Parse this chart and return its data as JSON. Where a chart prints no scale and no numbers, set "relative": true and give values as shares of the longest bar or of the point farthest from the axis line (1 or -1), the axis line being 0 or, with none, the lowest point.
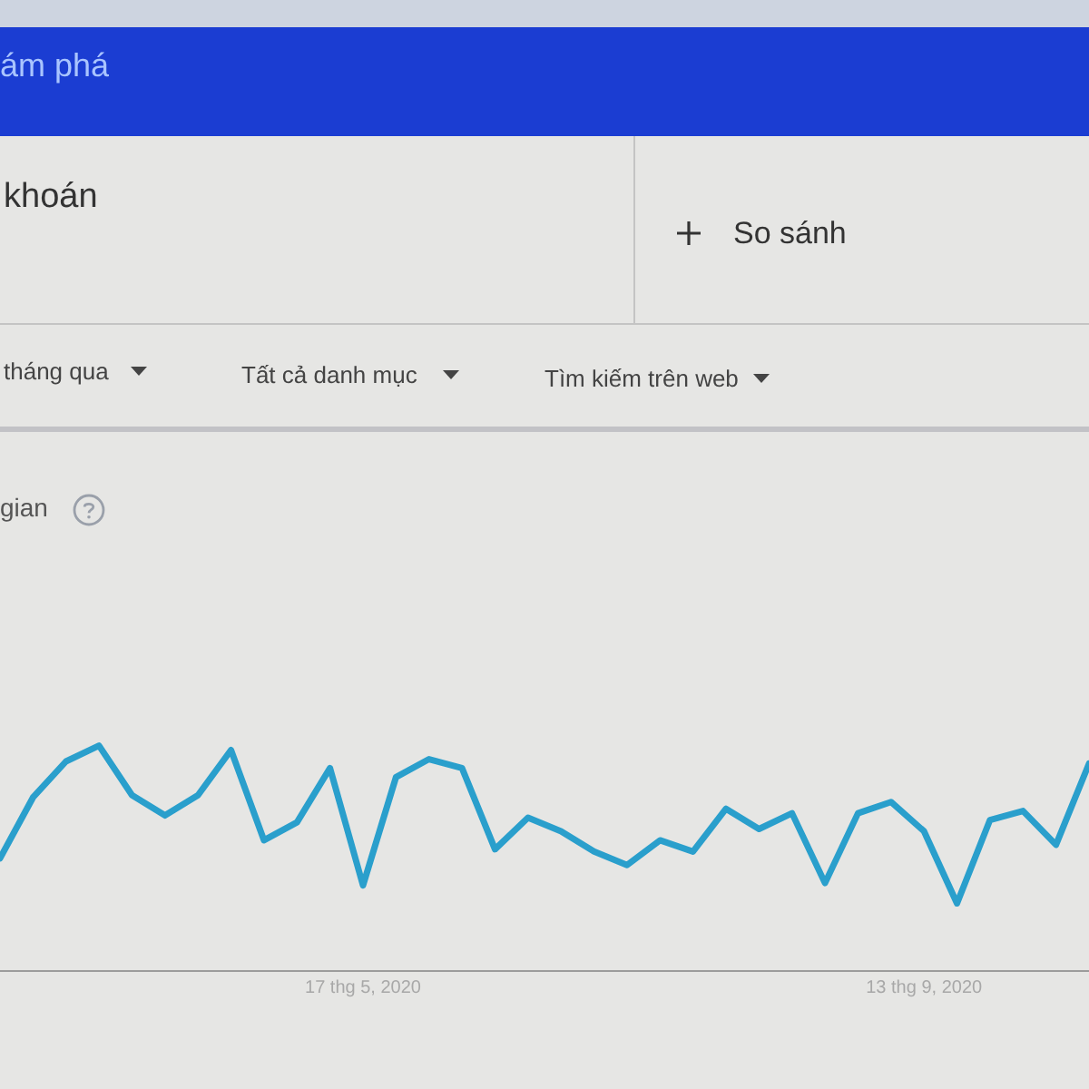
{
  "chart_data": {
    "type": "line",
    "title": "gian",
    "annotations": [
      "ám phá",
      "khoán",
      "So sánh",
      "tháng qua",
      "Tất cả danh mục",
      "Tìm kiếm trên web"
    ],
    "relative": true,
    "x": [
      "2020-03-01",
      "2020-03-08",
      "2020-03-15",
      "2020-03-22",
      "2020-03-29",
      "2020-04-05",
      "2020-04-12",
      "2020-04-19",
      "2020-04-26",
      "2020-05-03",
      "2020-05-10",
      "2020-05-17",
      "2020-05-24",
      "2020-05-31",
      "2020-06-07",
      "2020-06-14",
      "2020-06-21",
      "2020-06-28",
      "2020-07-05",
      "2020-07-12",
      "2020-07-19",
      "2020-07-26",
      "2020-08-02",
      "2020-08-09",
      "2020-08-16",
      "2020-08-23",
      "2020-08-30",
      "2020-09-06",
      "2020-09-13",
      "2020-09-20",
      "2020-09-27",
      "2020-10-04",
      "2020-10-11",
      "2020-10-18"
    ],
    "values": [
      0.5,
      0.77,
      0.93,
      1,
      0.78,
      0.69,
      0.78,
      0.98,
      0.58,
      0.66,
      0.9,
      0.38,
      0.86,
      0.94,
      0.9,
      0.54,
      0.68,
      0.62,
      0.53,
      0.47,
      0.58,
      0.53,
      0.72,
      0.63,
      0.7,
      0.39,
      0.7,
      0.75,
      0.62,
      0.3,
      0.67,
      0.71,
      0.56,
      0.92
    ],
    "color": "#2a9fcc",
    "xlim": [
      "2020-03-01",
      "2020-10-18"
    ],
    "xticks": [
      {
        "value": "2020-05-17",
        "label": "17 thg 5, 2020"
      },
      {
        "value": "2020-09-13",
        "label": "13 thg 9, 2020"
      }
    ]
  }
}
